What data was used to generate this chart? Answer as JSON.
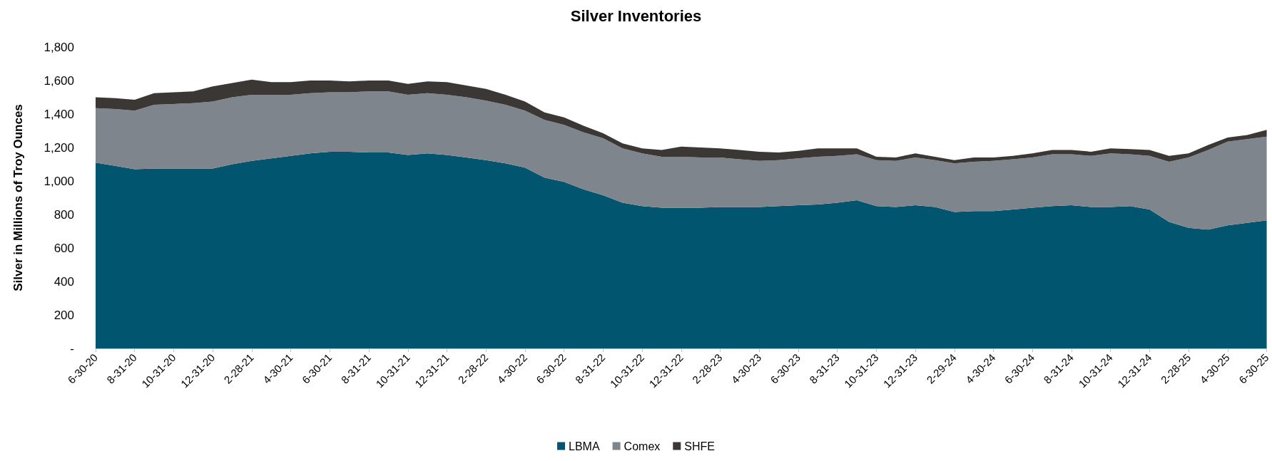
{
  "chart_data": {
    "type": "area",
    "title": "Silver Inventories",
    "ylabel": "Silver in Millions of Troy Ounces",
    "stacked": true,
    "grid": false,
    "legend": "bottom",
    "categories": [
      "6-30-20",
      null,
      "8-31-20",
      null,
      "10-31-20",
      null,
      "12-31-20",
      null,
      "2-28-21",
      null,
      "4-30-21",
      null,
      "6-30-21",
      null,
      "8-31-21",
      null,
      "10-31-21",
      null,
      "12-31-21",
      null,
      "2-28-22",
      null,
      "4-30-22",
      null,
      "6-30-22",
      null,
      "8-31-22",
      null,
      "10-31-22",
      null,
      "12-31-22",
      null,
      "2-28-23",
      null,
      "4-30-23",
      null,
      "6-30-23",
      null,
      "8-31-23",
      null,
      "10-31-23",
      null,
      "12-31-23",
      null,
      "2-29-24",
      null,
      "4-30-24",
      null,
      "6-30-24",
      null,
      "8-31-24",
      null,
      "10-31-24",
      null,
      "12-31-24",
      null,
      "2-28-25",
      null,
      "4-30-25",
      null,
      "6-30-25"
    ],
    "ylim": [
      0,
      1800
    ],
    "yticks": [
      {
        "value": 0,
        "label": "-"
      },
      200,
      400,
      600,
      800,
      {
        "value": 1000,
        "label": "1,000"
      },
      {
        "value": 1200,
        "label": "1,200"
      },
      {
        "value": 1400,
        "label": "1,400"
      },
      {
        "value": 1600,
        "label": "1,600"
      },
      {
        "value": 1800,
        "label": "1,800"
      }
    ],
    "series": [
      {
        "name": "LBMA",
        "color": "#01556f",
        "values": [
          1110,
          1090,
          1070,
          1075,
          1075,
          1075,
          1075,
          1100,
          1120,
          1135,
          1150,
          1165,
          1175,
          1175,
          1170,
          1170,
          1155,
          1165,
          1155,
          1140,
          1125,
          1105,
          1080,
          1020,
          995,
          950,
          915,
          870,
          850,
          840,
          840,
          840,
          845,
          845,
          845,
          850,
          855,
          860,
          870,
          885,
          850,
          845,
          855,
          845,
          815,
          820,
          820,
          830,
          840,
          850,
          855,
          845,
          845,
          850,
          830,
          755,
          720,
          710,
          735,
          750,
          765
        ]
      },
      {
        "name": "Comex",
        "color": "#7e858c",
        "values": [
          325,
          340,
          350,
          380,
          385,
          390,
          400,
          400,
          395,
          380,
          365,
          360,
          355,
          355,
          365,
          365,
          360,
          360,
          360,
          360,
          355,
          350,
          340,
          345,
          340,
          340,
          340,
          325,
          315,
          305,
          305,
          300,
          295,
          285,
          275,
          275,
          280,
          285,
          280,
          275,
          275,
          275,
          285,
          280,
          290,
          295,
          300,
          300,
          300,
          310,
          305,
          305,
          320,
          310,
          320,
          360,
          420,
          475,
          500,
          500,
          500
        ]
      },
      {
        "name": "SHFE",
        "color": "#3b3734",
        "values": [
          65,
          65,
          65,
          70,
          70,
          70,
          90,
          85,
          90,
          75,
          75,
          75,
          70,
          65,
          65,
          65,
          65,
          70,
          75,
          70,
          70,
          60,
          55,
          45,
          45,
          40,
          30,
          30,
          30,
          40,
          60,
          60,
          55,
          55,
          55,
          45,
          45,
          50,
          45,
          35,
          20,
          20,
          25,
          20,
          20,
          25,
          20,
          20,
          25,
          25,
          25,
          25,
          30,
          30,
          35,
          35,
          25,
          30,
          25,
          25,
          40
        ]
      }
    ]
  }
}
